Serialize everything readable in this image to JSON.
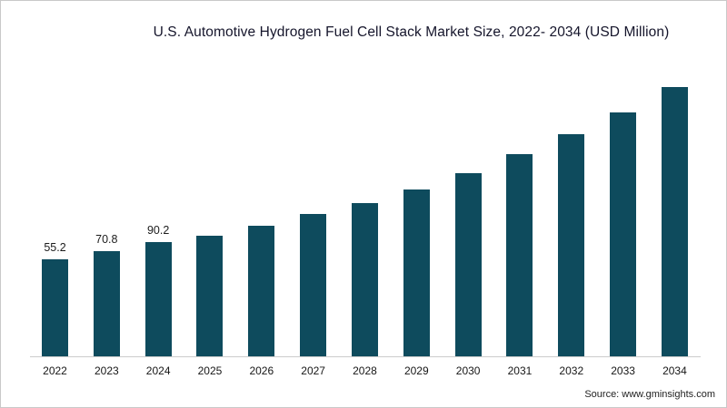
{
  "chart_data": {
    "type": "bar",
    "title": "U.S. Automotive Hydrogen Fuel Cell Stack Market Size, 2022- 2034 (USD Million)",
    "categories": [
      "2022",
      "2023",
      "2024",
      "2025",
      "2026",
      "2027",
      "2028",
      "2029",
      "2030",
      "2031",
      "2032",
      "2033",
      "2034"
    ],
    "values": [
      55.2,
      70.8,
      90.2,
      103,
      123,
      146,
      168,
      197,
      230,
      267,
      308,
      352,
      403
    ],
    "data_labels": [
      "55.2",
      "70.8",
      "90.2",
      "",
      "",
      "",
      "",
      "",
      "",
      "",
      "",
      "",
      ""
    ],
    "xlabel": "",
    "ylabel": "",
    "source": "Source: www.gminsights.com",
    "colors": {
      "bar": "#0e4b5d",
      "axis": "#cccccc",
      "title_text": "#15152b",
      "label_text": "#1c1c1c"
    },
    "layout_hints": {
      "grid": false,
      "y_axis_visible": false,
      "legend": false,
      "values_for_2025_to_2034_estimated_from_bar_heights": true
    }
  }
}
